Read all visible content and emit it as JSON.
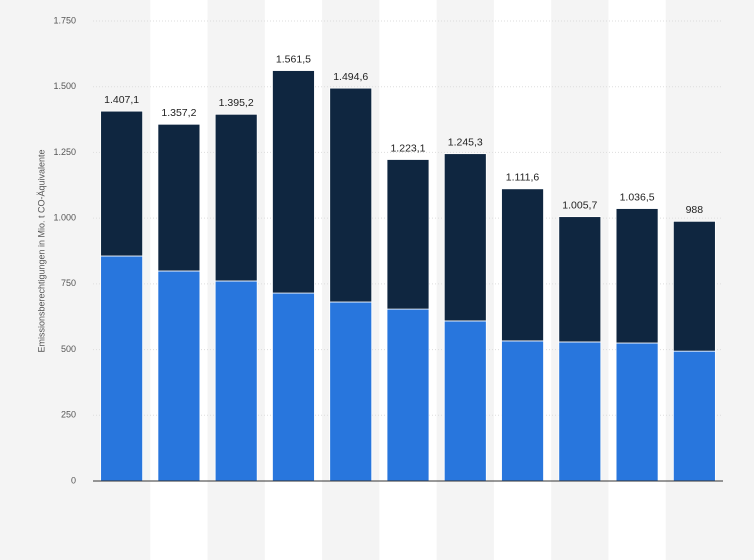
{
  "chart_data": {
    "type": "stacked_bar",
    "y_label": "Emissionsberechtigungen in Mio. t CO-Äquivalente",
    "categories": [
      null,
      null,
      null,
      null,
      null,
      null,
      null,
      null,
      null,
      null,
      null
    ],
    "series": [
      {
        "color": "#2876dd",
        "values": [
          856,
          799,
          761,
          715,
          681,
          654,
          609,
          533,
          529,
          525,
          494
        ]
      },
      {
        "color": "#0f2640",
        "values": [
          551.1,
          558.2,
          634.2,
          846.5,
          813.6,
          569.1,
          636.3,
          578.6,
          476.7,
          511.5,
          494
        ]
      }
    ],
    "totals": [
      1407.1,
      1357.2,
      1395.2,
      1561.5,
      1494.6,
      1223.1,
      1245.3,
      1111.6,
      1005.7,
      1036.5,
      988
    ],
    "total_labels": [
      "1.407,1",
      "1.357,2",
      "1.395,2",
      "1.561,5",
      "1.494,6",
      "1.223,1",
      "1.245,3",
      "1.111,6",
      "1.005,7",
      "1.036,5",
      "988"
    ],
    "ylim": [
      0,
      1750
    ],
    "yticks": [
      0,
      250,
      500,
      750,
      {
        "value": 1000,
        "label": "1.000"
      },
      {
        "value": 1250,
        "label": "1.250"
      },
      {
        "value": 1500,
        "label": "1.500"
      },
      {
        "value": 1750,
        "label": "1.750"
      }
    ],
    "grid": true
  }
}
